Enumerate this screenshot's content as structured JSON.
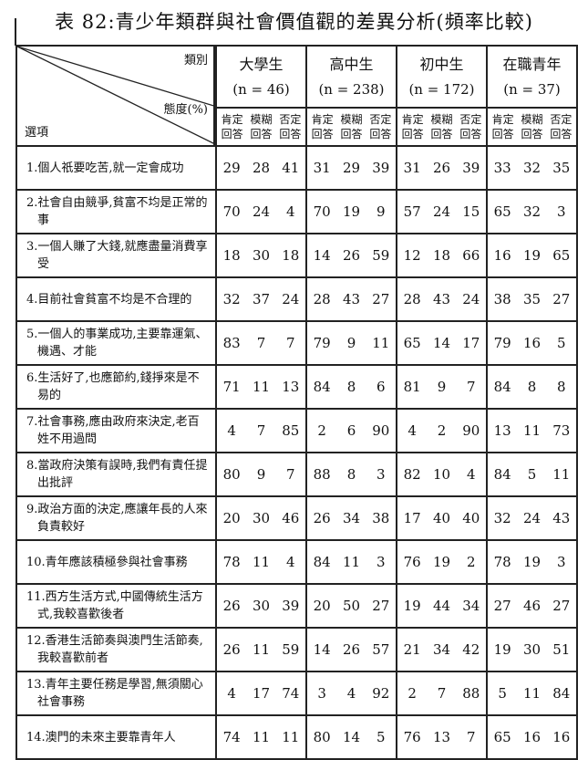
{
  "title": "表 82:青少年類群與社會價值觀的差異分析(頻率比較)",
  "header": {
    "category_label": "類別",
    "attitude_label": "態度(%)",
    "option_label": "選項",
    "groups": [
      {
        "name": "大學生",
        "n": "(n = 46)"
      },
      {
        "name": "高中生",
        "n": "(n = 238)"
      },
      {
        "name": "初中生",
        "n": "(n = 172)"
      },
      {
        "name": "在職青年",
        "n": "(n = 37)"
      }
    ],
    "subcols": [
      "肯定回答",
      "模糊回答",
      "否定回答"
    ]
  },
  "rows": [
    {
      "line1": "1.個人祇要吃苦,就一定會成功",
      "line2": "",
      "values": [
        [
          29,
          28,
          41
        ],
        [
          31,
          29,
          39
        ],
        [
          31,
          26,
          39
        ],
        [
          33,
          32,
          35
        ]
      ]
    },
    {
      "line1": "2.社會自由競爭,貧富不均是正常的",
      "line2": "事",
      "values": [
        [
          70,
          24,
          4
        ],
        [
          70,
          19,
          9
        ],
        [
          57,
          24,
          15
        ],
        [
          65,
          32,
          3
        ]
      ]
    },
    {
      "line1": "3.一個人賺了大錢,就應盡量消費享",
      "line2": "受",
      "values": [
        [
          18,
          30,
          18
        ],
        [
          14,
          26,
          59
        ],
        [
          12,
          18,
          66
        ],
        [
          16,
          19,
          65
        ]
      ]
    },
    {
      "line1": "4.目前社會貧富不均是不合理的",
      "line2": "",
      "values": [
        [
          32,
          37,
          24
        ],
        [
          28,
          43,
          27
        ],
        [
          28,
          43,
          24
        ],
        [
          38,
          35,
          27
        ]
      ]
    },
    {
      "line1": "5.一個人的事業成功,主要靠運氣、",
      "line2": "機遇、才能",
      "values": [
        [
          83,
          7,
          7
        ],
        [
          79,
          9,
          11
        ],
        [
          65,
          14,
          17
        ],
        [
          79,
          16,
          5
        ]
      ]
    },
    {
      "line1": "6.生活好了,也應節約,錢掙來是不",
      "line2": "易的",
      "values": [
        [
          71,
          11,
          13
        ],
        [
          84,
          8,
          6
        ],
        [
          81,
          9,
          7
        ],
        [
          84,
          8,
          8
        ]
      ]
    },
    {
      "line1": "7.社會事務,應由政府來決定,老百",
      "line2": "姓不用過問",
      "values": [
        [
          4,
          7,
          85
        ],
        [
          2,
          6,
          90
        ],
        [
          4,
          2,
          90
        ],
        [
          13,
          11,
          73
        ]
      ]
    },
    {
      "line1": "8.當政府決策有誤時,我們有責任提",
      "line2": "出批評",
      "values": [
        [
          80,
          9,
          7
        ],
        [
          88,
          8,
          3
        ],
        [
          82,
          10,
          4
        ],
        [
          84,
          5,
          11
        ]
      ]
    },
    {
      "line1": "9.政治方面的決定,應讓年長的人來",
      "line2": "負責較好",
      "values": [
        [
          20,
          30,
          46
        ],
        [
          26,
          34,
          38
        ],
        [
          17,
          40,
          40
        ],
        [
          32,
          24,
          43
        ]
      ]
    },
    {
      "line1": "10.青年應該積極參與社會事務",
      "line2": "",
      "values": [
        [
          78,
          11,
          4
        ],
        [
          84,
          11,
          3
        ],
        [
          76,
          19,
          2
        ],
        [
          78,
          19,
          3
        ]
      ]
    },
    {
      "line1": "11.西方生活方式,中國傳統生活方",
      "line2": "式,我較喜歡後者",
      "values": [
        [
          26,
          30,
          39
        ],
        [
          20,
          50,
          27
        ],
        [
          19,
          44,
          34
        ],
        [
          27,
          46,
          27
        ]
      ]
    },
    {
      "line1": "12.香港生活節奏與澳門生活節奏,",
      "line2": "我較喜歡前者",
      "values": [
        [
          26,
          11,
          59
        ],
        [
          14,
          26,
          57
        ],
        [
          21,
          34,
          42
        ],
        [
          19,
          30,
          51
        ]
      ]
    },
    {
      "line1": "13.青年主要任務是學習,無須關心",
      "line2": "社會事務",
      "values": [
        [
          4,
          17,
          74
        ],
        [
          3,
          4,
          92
        ],
        [
          2,
          7,
          88
        ],
        [
          5,
          11,
          84
        ]
      ]
    },
    {
      "line1": "14.澳門的未來主要靠青年人",
      "line2": "",
      "values": [
        [
          74,
          11,
          11
        ],
        [
          80,
          14,
          5
        ],
        [
          76,
          13,
          7
        ],
        [
          65,
          16,
          16
        ]
      ]
    }
  ]
}
